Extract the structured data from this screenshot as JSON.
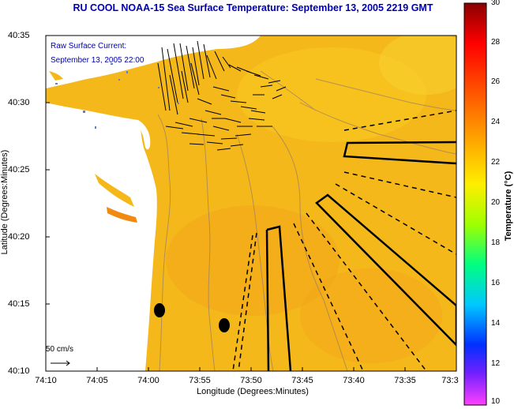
{
  "title": "RU COOL  NOAA-15  Sea Surface Temperature:  September 13, 2005 2219 GMT",
  "map": {
    "ylabel": "Latitude (Degrees:Minutes)",
    "xlabel": "Longitude (Degrees:Minutes)",
    "yticks": [
      "40:35",
      "40:30",
      "40:25",
      "40:20",
      "40:15",
      "40:10"
    ],
    "xticks": [
      "74:10",
      "74:05",
      "74:00",
      "73:55",
      "73:50",
      "73:45",
      "73:40",
      "73:35",
      "73:3"
    ],
    "legend_line1": "Raw Surface Current:",
    "legend_line2": "September 13, 2005 22:00",
    "scale_label": "50 cm/s"
  },
  "colorbar": {
    "title": "Temperature (°C)",
    "ticks": [
      "30",
      "28",
      "26",
      "24",
      "22",
      "20",
      "18",
      "16",
      "14",
      "12",
      "10"
    ]
  },
  "colors": {
    "sea": "#f4b81a",
    "land": "#ffffff",
    "title": "#0000b0",
    "contour": "#a08060"
  }
}
